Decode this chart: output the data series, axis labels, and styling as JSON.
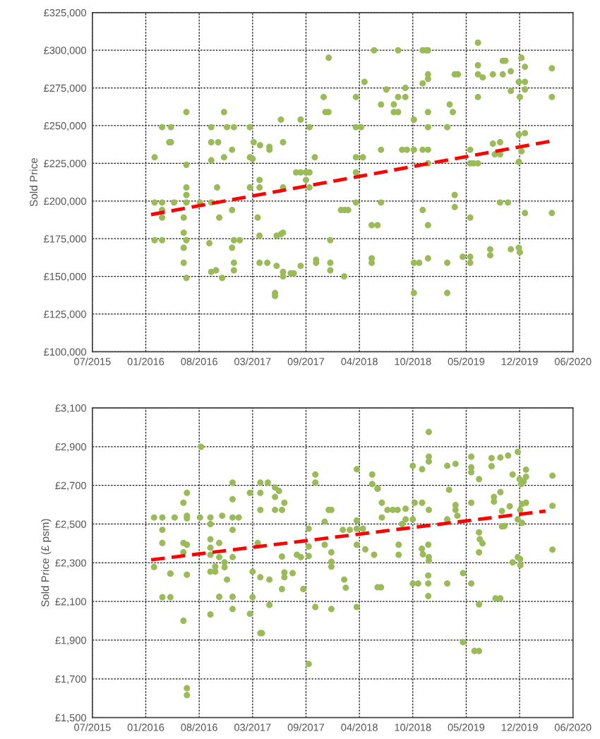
{
  "chart_data": [
    {
      "type": "scatter",
      "ylabel": "Sold Price",
      "marker": "circle",
      "grid": true,
      "xlim": [
        "2015-07-15",
        "2020-06-18"
      ],
      "xticks": [
        {
          "value": "2015-07-15",
          "label": "07/2015"
        },
        {
          "value": "2016-01-31",
          "label": "01/2016"
        },
        {
          "value": "2016-08-18",
          "label": "08/2016"
        },
        {
          "value": "2017-03-06",
          "label": "03/2017"
        },
        {
          "value": "2017-09-22",
          "label": "09/2017"
        },
        {
          "value": "2018-04-10",
          "label": "04/2018"
        },
        {
          "value": "2018-10-27",
          "label": "10/2018"
        },
        {
          "value": "2019-05-15",
          "label": "05/2019"
        },
        {
          "value": "2019-12-01",
          "label": "12/2019"
        },
        {
          "value": "2020-06-18",
          "label": "06/2020"
        }
      ],
      "ylim": [
        100000,
        325000
      ],
      "yticks": [
        {
          "value": 100000,
          "label": "£100,000"
        },
        {
          "value": 125000,
          "label": "£125,000"
        },
        {
          "value": 150000,
          "label": "£150,000"
        },
        {
          "value": 175000,
          "label": "£175,000"
        },
        {
          "value": 200000,
          "label": "£200,000"
        },
        {
          "value": 225000,
          "label": "£225,000"
        },
        {
          "value": 250000,
          "label": "£250,000"
        },
        {
          "value": 275000,
          "label": "£275,000"
        },
        {
          "value": 300000,
          "label": "£300,000"
        },
        {
          "value": 325000,
          "label": "£325,000"
        }
      ],
      "series": [
        {
          "color": "#9bbb59",
          "x": [
            "2016-03-04",
            "2016-03-04",
            "2016-03-04",
            "2016-04-01",
            "2016-04-01",
            "2016-04-01",
            "2016-04-01",
            "2016-04-01",
            "2016-04-28",
            "2016-05-04",
            "2016-05-04",
            "2016-05-16",
            "2016-06-21",
            "2016-06-21",
            "2016-06-21",
            "2016-06-21",
            "2016-07-01",
            "2016-07-01",
            "2016-07-01",
            "2016-07-01",
            "2016-07-01",
            "2016-07-01",
            "2016-07-01",
            "2016-08-21",
            "2016-09-25",
            "2016-10-02",
            "2016-10-02",
            "2016-10-02",
            "2016-10-02",
            "2016-10-02",
            "2016-10-24",
            "2016-10-28",
            "2016-10-20",
            "2016-11-01",
            "2016-11-12",
            "2016-11-19",
            "2016-11-19",
            "2016-11-30",
            "2016-12-19",
            "2016-12-19",
            "2016-12-19",
            "2016-12-26",
            "2016-12-26",
            "2016-12-26",
            "2016-12-26",
            "2017-01-17",
            "2017-02-24",
            "2017-02-24",
            "2017-02-24",
            "2017-03-06",
            "2017-03-10",
            "2017-03-25",
            "2017-04-01",
            "2017-04-01",
            "2017-04-01",
            "2017-04-01",
            "2017-04-03",
            "2017-04-30",
            "2017-05-08",
            "2017-05-08",
            "2017-05-29",
            "2017-05-29",
            "2017-06-04",
            "2017-06-04",
            "2017-06-20",
            "2017-06-20",
            "2017-06-28",
            "2017-06-28",
            "2017-06-28",
            "2017-06-28",
            "2017-06-28",
            "2017-07-27",
            "2017-08-07",
            "2017-08-16",
            "2017-09-02",
            "2017-09-02",
            "2017-09-02",
            "2017-09-22",
            "2017-09-22",
            "2017-10-05",
            "2017-10-05",
            "2017-10-05",
            "2017-10-25",
            "2017-10-30",
            "2017-10-30",
            "2017-11-27",
            "2017-12-04",
            "2017-12-15",
            "2017-12-16",
            "2017-12-22",
            "2017-12-22",
            "2017-12-22",
            "2018-02-12",
            "2018-01-31",
            "2018-02-14",
            "2018-02-27",
            "2018-03-28",
            "2018-03-28",
            "2018-03-28",
            "2018-03-28",
            "2018-03-28",
            "2018-04-16",
            "2018-04-23",
            "2018-04-29",
            "2018-05-26",
            "2018-05-26",
            "2018-05-26",
            "2018-06-04",
            "2018-06-17",
            "2018-06-30",
            "2018-06-30",
            "2018-06-30",
            "2018-07-20",
            "2018-08-17",
            "2018-08-17",
            "2018-09-02",
            "2018-09-02",
            "2018-09-02",
            "2018-09-17",
            "2018-09-29",
            "2018-09-29",
            "2018-10-05",
            "2018-10-31",
            "2018-10-31",
            "2018-10-31",
            "2018-10-31",
            "2018-11-20",
            "2018-12-03",
            "2018-12-03",
            "2018-12-03",
            "2018-12-03",
            "2018-12-16",
            "2018-12-23",
            "2018-12-23",
            "2018-12-23",
            "2018-12-23",
            "2018-12-23",
            "2018-12-23",
            "2018-12-23",
            "2018-12-23",
            "2018-12-23",
            "2019-03-05",
            "2019-03-05",
            "2019-03-05",
            "2019-03-14",
            "2019-03-26",
            "2019-04-02",
            "2019-04-02",
            "2019-04-02",
            "2019-04-14",
            "2019-05-02",
            "2019-05-30",
            "2019-05-30",
            "2019-05-30",
            "2019-05-30",
            "2019-05-30",
            "2019-06-12",
            "2019-06-28",
            "2019-06-28",
            "2019-06-28",
            "2019-06-28",
            "2019-06-28",
            "2019-07-16",
            "2019-08-13",
            "2019-08-13",
            "2019-08-23",
            "2019-08-23",
            "2019-08-30",
            "2019-09-19",
            "2019-09-19",
            "2019-09-19",
            "2019-09-29",
            "2019-09-29",
            "2019-10-09",
            "2019-10-18",
            "2019-10-29",
            "2019-10-29",
            "2019-10-29",
            "2019-11-28",
            "2019-11-28",
            "2019-11-28",
            "2019-11-28",
            "2019-12-02",
            "2019-12-02",
            "2019-12-08",
            "2019-12-08",
            "2019-12-21",
            "2019-12-21",
            "2019-12-21",
            "2019-12-21",
            "2019-12-21",
            "2020-03-31",
            "2020-03-31",
            "2020-03-31"
          ],
          "values": [
            229000,
            199000,
            174000,
            249000,
            199000,
            194000,
            189000,
            174000,
            239000,
            249000,
            239000,
            199000,
            189000,
            179000,
            159000,
            169000,
            259000,
            224000,
            209000,
            204000,
            199000,
            174000,
            149000,
            199000,
            172000,
            249000,
            239000,
            227000,
            199000,
            153000,
            209000,
            239000,
            154000,
            189000,
            149000,
            259000,
            229000,
            249000,
            234000,
            194000,
            169000,
            249000,
            174000,
            159000,
            154000,
            174000,
            249000,
            229000,
            209000,
            228000,
            239000,
            189000,
            214000,
            209000,
            177000,
            159000,
            237000,
            159000,
            234000,
            236000,
            139000,
            137000,
            177000,
            157000,
            178000,
            254000,
            179000,
            239000,
            209000,
            153000,
            150000,
            152000,
            152000,
            219000,
            219000,
            157000,
            254000,
            219000,
            214000,
            219000,
            209000,
            249000,
            229000,
            161000,
            159000,
            269000,
            259000,
            259000,
            295000,
            174000,
            159000,
            154000,
            150000,
            194000,
            194000,
            194000,
            269000,
            249000,
            229000,
            219000,
            199000,
            249000,
            229000,
            279000,
            184000,
            162000,
            159000,
            300000,
            184000,
            264000,
            234000,
            199000,
            274000,
            264000,
            259000,
            300000,
            269000,
            259000,
            234000,
            275000,
            269000,
            234000,
            254000,
            159000,
            139000,
            234000,
            159000,
            300000,
            278000,
            234000,
            194000,
            300000,
            300000,
            284000,
            281000,
            259000,
            249000,
            234000,
            225000,
            184000,
            162000,
            249000,
            159000,
            139000,
            264000,
            259000,
            284000,
            204000,
            196000,
            284000,
            163000,
            234000,
            225000,
            189000,
            163000,
            159000,
            225000,
            225000,
            305000,
            290000,
            284000,
            269000,
            282000,
            168000,
            164000,
            284000,
            238000,
            231000,
            199000,
            239000,
            231000,
            284000,
            293000,
            293000,
            199000,
            286000,
            273000,
            168000,
            279000,
            244000,
            226000,
            169000,
            269000,
            166000,
            295000,
            233000,
            279000,
            245000,
            289000,
            274000,
            192000,
            288000,
            269000,
            192000
          ]
        },
        {
          "type": "line",
          "color": "#ff0000",
          "line_style": "dashed",
          "marker": "none",
          "x": [
            "2016-02-20",
            "2020-04-05"
          ],
          "values": [
            191000,
            240000
          ]
        }
      ]
    },
    {
      "type": "scatter",
      "ylabel": "Sold Price (£ psm)",
      "marker": "circle",
      "grid": true,
      "xlim": [
        "2015-07-15",
        "2020-06-18"
      ],
      "xticks": [
        {
          "value": "2015-07-15",
          "label": "07/2015"
        },
        {
          "value": "2016-01-31",
          "label": "01/2016"
        },
        {
          "value": "2016-08-18",
          "label": "08/2016"
        },
        {
          "value": "2017-03-06",
          "label": "03/2017"
        },
        {
          "value": "2017-09-22",
          "label": "09/2017"
        },
        {
          "value": "2018-04-10",
          "label": "04/2018"
        },
        {
          "value": "2018-10-27",
          "label": "10/2018"
        },
        {
          "value": "2019-05-15",
          "label": "05/2019"
        },
        {
          "value": "2019-12-01",
          "label": "12/2019"
        },
        {
          "value": "2020-06-18",
          "label": "06/2020"
        }
      ],
      "ylim": [
        1500,
        3100
      ],
      "yticks": [
        {
          "value": 1500,
          "label": "£1,500"
        },
        {
          "value": 1700,
          "label": "£1,700"
        },
        {
          "value": 1900,
          "label": "£1,900"
        },
        {
          "value": 2100,
          "label": "£2,100"
        },
        {
          "value": 2300,
          "label": "£2,300"
        },
        {
          "value": 2500,
          "label": "£2,500"
        },
        {
          "value": 2700,
          "label": "£2,700"
        },
        {
          "value": 2900,
          "label": "£2,900"
        },
        {
          "value": 3100,
          "label": "£3,100"
        }
      ],
      "series": [
        {
          "color": "#9bbb59",
          "x": [
            "2016-03-02",
            "2016-03-02",
            "2016-04-02",
            "2016-04-02",
            "2016-04-02",
            "2016-04-02",
            "2016-05-02",
            "2016-05-02",
            "2016-05-02",
            "2016-05-18",
            "2016-06-20",
            "2016-06-20",
            "2016-06-20",
            "2016-06-20",
            "2016-07-03",
            "2016-07-03",
            "2016-07-03",
            "2016-07-03",
            "2016-07-03",
            "2016-07-03",
            "2016-07-03",
            "2016-08-25",
            "2016-08-21",
            "2016-09-29",
            "2016-09-29",
            "2016-09-29",
            "2016-09-29",
            "2016-09-29",
            "2016-09-29",
            "2016-10-17",
            "2016-10-17",
            "2016-09-29",
            "2016-11-01",
            "2016-11-01",
            "2016-11-01",
            "2016-11-12",
            "2016-11-21",
            "2016-11-21",
            "2016-11-30",
            "2016-12-21",
            "2016-12-21",
            "2016-12-21",
            "2016-12-21",
            "2016-12-21",
            "2016-12-21",
            "2016-12-21",
            "2017-01-13",
            "2017-02-24",
            "2017-02-24",
            "2017-03-06",
            "2017-03-06",
            "2017-03-25",
            "2017-04-04",
            "2017-04-04",
            "2017-04-04",
            "2017-04-04",
            "2017-04-04",
            "2017-04-10",
            "2017-05-02",
            "2017-05-08",
            "2017-05-08",
            "2017-05-29",
            "2017-05-29",
            "2017-05-29",
            "2017-06-13",
            "2017-06-24",
            "2017-06-24",
            "2017-06-24",
            "2017-07-03",
            "2017-07-03",
            "2017-07-03",
            "2017-08-03",
            "2017-08-19",
            "2017-09-03",
            "2017-09-12",
            "2017-10-02",
            "2017-10-02",
            "2017-10-02",
            "2017-10-02",
            "2017-10-27",
            "2017-10-27",
            "2017-10-27",
            "2017-12-01",
            "2017-12-01",
            "2017-12-16",
            "2017-12-26",
            "2017-12-26",
            "2017-12-26",
            "2017-12-26",
            "2017-12-26",
            "2018-02-12",
            "2018-02-18",
            "2018-03-31",
            "2018-03-31",
            "2018-03-31",
            "2018-03-31",
            "2018-03-31",
            "2018-04-23",
            "2018-03-05",
            "2018-02-07",
            "2018-05-02",
            "2018-05-28",
            "2018-05-28",
            "2018-06-17",
            "2018-06-17",
            "2018-06-04",
            "2018-06-17",
            "2018-06-30",
            "2018-07-03",
            "2018-07-03",
            "2018-07-24",
            "2018-08-13",
            "2018-08-31",
            "2018-09-30",
            "2018-09-04",
            "2018-09-04",
            "2018-09-17",
            "2018-09-30",
            "2018-10-27",
            "2018-10-27",
            "2018-11-03",
            "2018-10-27",
            "2018-11-16",
            "2018-12-01",
            "2018-12-01",
            "2018-11-30",
            "2018-12-04",
            "2018-12-24",
            "2018-12-26",
            "2018-12-26",
            "2018-12-24",
            "2018-12-24",
            "2018-12-24",
            "2018-12-26",
            "2018-12-26",
            "2018-12-26",
            "2018-12-26",
            "2019-03-05",
            "2019-04-05",
            "2019-03-05",
            "2019-03-05",
            "2019-03-12",
            "2019-04-05",
            "2019-04-05",
            "2019-04-12",
            "2019-05-03",
            "2019-05-03",
            "2019-06-03",
            "2019-06-03",
            "2019-06-03",
            "2019-06-03",
            "2019-06-03",
            "2019-06-15",
            "2019-07-02",
            "2019-07-02",
            "2019-07-02",
            "2019-07-05",
            "2019-07-15",
            "2019-07-02",
            "2019-07-02",
            "2019-08-18",
            "2019-08-18",
            "2019-08-27",
            "2019-08-27",
            "2019-09-02",
            "2019-09-20",
            "2019-09-20",
            "2019-09-20",
            "2019-09-26",
            "2019-09-26",
            "2019-10-05",
            "2019-10-19",
            "2019-10-25",
            "2019-11-05",
            "2019-11-05",
            "2019-11-24",
            "2019-11-24",
            "2019-11-24",
            "2019-12-01",
            "2019-12-07",
            "2019-12-16",
            "2019-12-25",
            "2019-12-25",
            "2019-12-10",
            "2019-12-10",
            "2019-12-25",
            "2019-12-03",
            "2019-12-04",
            "2019-12-03",
            "2020-04-02",
            "2020-04-02",
            "2020-04-02"
          ],
          "values": [
            2534,
            2278,
            2534,
            2470,
            2402,
            2122,
            2122,
            2244,
            2244,
            2534,
            2610,
            2402,
            2354,
            2000,
            2661,
            2543,
            2530,
            2393,
            2238,
            1652,
            1616,
            2899,
            2534,
            2534,
            2500,
            2421,
            2378,
            2341,
            2254,
            2254,
            2280,
            2033,
            2402,
            2329,
            2124,
            2543,
            2302,
            2277,
            2213,
            2329,
            2470,
            2534,
            2628,
            2714,
            2124,
            2061,
            2534,
            2661,
            2036,
            2254,
            2122,
            2402,
            2714,
            2661,
            2573,
            2225,
            1936,
            1936,
            2714,
            2213,
            2082,
            2689,
            2640,
            2573,
            2671,
            2573,
            2332,
            2164,
            2610,
            2250,
            2225,
            2246,
            2341,
            2329,
            2164,
            2476,
            2384,
            2335,
            1777,
            2756,
            2714,
            2071,
            2512,
            2393,
            2573,
            2573,
            2354,
            2305,
            2280,
            2061,
            2213,
            2171,
            2783,
            2518,
            2393,
            2071,
            2476,
            2476,
            2470,
            2470,
            2369,
            2756,
            2707,
            2683,
            2683,
            2341,
            2173,
            2173,
            2534,
            2610,
            2573,
            2573,
            2573,
            2579,
            2393,
            2341,
            2500,
            2524,
            2801,
            2524,
            2610,
            2193,
            2193,
            2783,
            2610,
            2372,
            2344,
            2393,
            2329,
            2311,
            2234,
            2193,
            2128,
            2976,
            2848,
            2823,
            2573,
            2801,
            2811,
            2193,
            2524,
            2677,
            2598,
            2573,
            2543,
            2246,
            1890,
            2848,
            2793,
            2768,
            2610,
            2193,
            1844,
            1844,
            2732,
            2457,
            2421,
            2400,
            2354,
            2085,
            2841,
            2799,
            2640,
            2616,
            2116,
            2116,
            2844,
            2665,
            2567,
            2488,
            2490,
            2854,
            2592,
            2756,
            2302,
            2873,
            2329,
            2524,
            2732,
            2707,
            2720,
            2781,
            2744,
            2506,
            2604,
            2610,
            2573,
            2287,
            2319,
            2750,
            2594,
            2368
          ]
        },
        {
          "type": "line",
          "color": "#ff0000",
          "line_style": "dashed",
          "marker": "none",
          "x": [
            "2016-02-20",
            "2020-03-07"
          ],
          "values": [
            2315,
            2567
          ]
        }
      ]
    }
  ]
}
